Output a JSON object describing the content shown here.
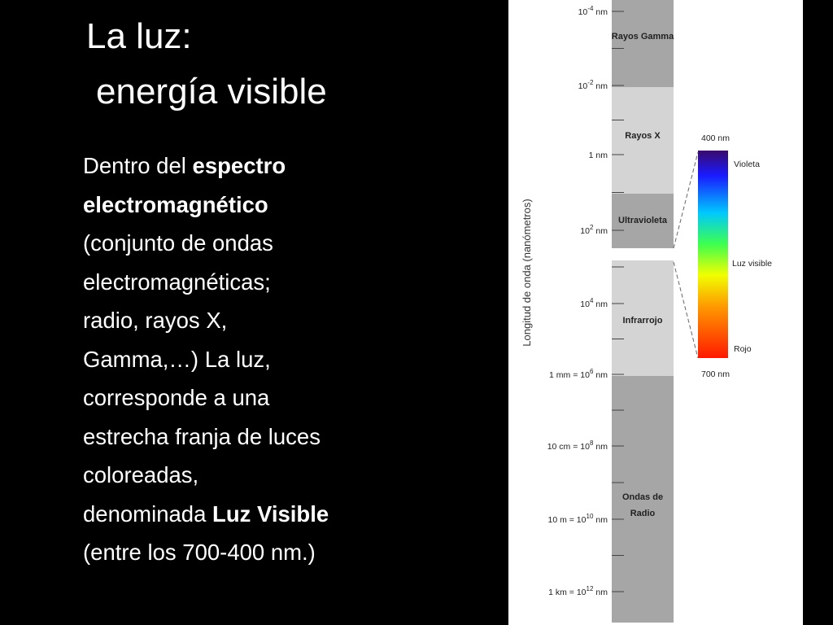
{
  "slide": {
    "title_lines": [
      "La luz:",
      "energía visible"
    ],
    "paragraph_lines": [
      [
        {
          "text": "Dentro del "
        },
        {
          "text": "espectro",
          "bold": true
        }
      ],
      [
        {
          "text": "electromagnético",
          "bold": true
        }
      ],
      [
        {
          "text": "(conjunto de ondas"
        }
      ],
      [
        {
          "text": "electromagnéticas;"
        }
      ],
      [
        {
          "text": "radio, rayos X,"
        }
      ],
      [
        {
          "text": "Gamma,…) La luz,"
        }
      ],
      [
        {
          "text": "corresponde a una"
        }
      ],
      [
        {
          "text": "estrecha franja de luces"
        }
      ],
      [
        {
          "text": "coloreadas,"
        }
      ],
      [
        {
          "text": "denominada "
        },
        {
          "text": "Luz Visible",
          "bold": true
        }
      ],
      [
        {
          "text": "(entre los 700-400 nm.)"
        }
      ]
    ]
  },
  "diagram": {
    "axis_label": "Longitud de onda (nanómetros)",
    "ticks": [
      {
        "text": "10",
        "sup": "-4",
        "unit": "nm"
      },
      {
        "text": "10",
        "sup": "-2",
        "unit": "nm"
      },
      {
        "text": "1 nm"
      },
      {
        "text": "10",
        "sup": "2",
        "unit": "nm"
      },
      {
        "text": "10",
        "sup": "4",
        "unit": "nm"
      },
      {
        "text": "1 mm = 10",
        "sup": "6",
        "unit": "nm"
      },
      {
        "text": "10 cm = 10",
        "sup": "8",
        "unit": "nm"
      },
      {
        "text": "10 m = 10",
        "sup": "10",
        "unit": "nm"
      },
      {
        "text": "1 km = 10",
        "sup": "12",
        "unit": "nm"
      }
    ],
    "bands": [
      {
        "lines": [
          "Rayos Gamma"
        ]
      },
      {
        "lines": [
          "Rayos X"
        ]
      },
      {
        "lines": [
          "Ultravioleta"
        ]
      },
      {
        "lines": [
          "Infrarrojo"
        ]
      },
      {
        "lines": [
          "Ondas de",
          "Radio"
        ]
      }
    ],
    "visible": {
      "top": "400 nm",
      "bottom": "700 nm",
      "violet": "Violeta",
      "middle": "Luz visible",
      "red": "Rojo"
    }
  }
}
